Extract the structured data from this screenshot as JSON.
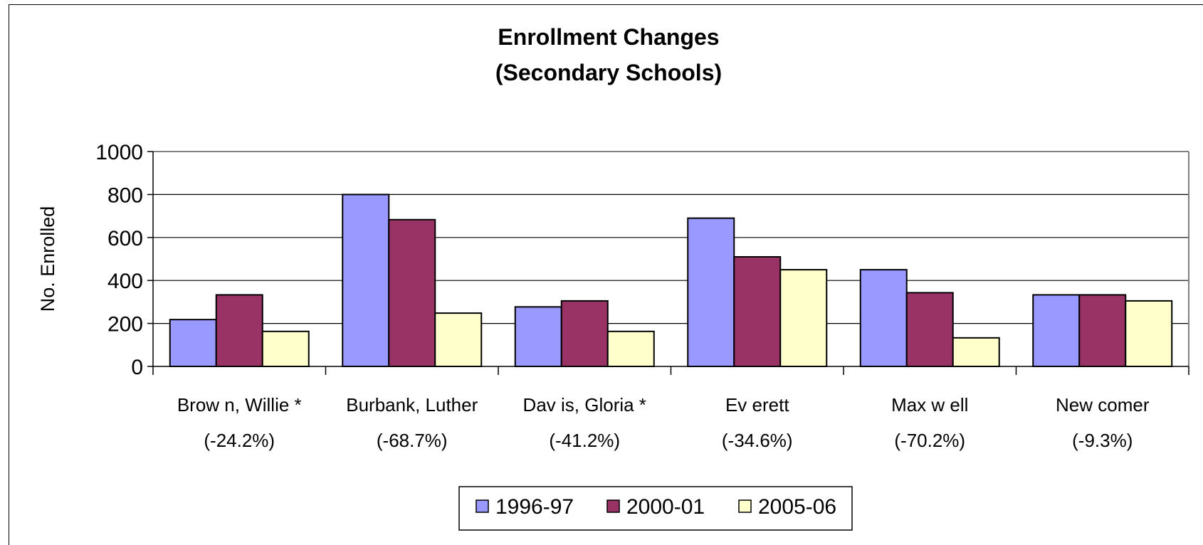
{
  "chart_data": {
    "type": "bar",
    "title": [
      "Enrollment Changes",
      "(Secondary Schools)"
    ],
    "ylabel": "No. Enrolled",
    "xlabel": "",
    "ylim": [
      0,
      1000
    ],
    "yticks": [
      0,
      200,
      400,
      600,
      800,
      1000
    ],
    "grid": true,
    "legend_position": "bottom",
    "categories": [
      [
        "Brow n, Willie *",
        "(-24.2%)"
      ],
      [
        "Burbank, Luther",
        "(-68.7%)"
      ],
      [
        "Dav is, Gloria *",
        "(-41.2%)"
      ],
      [
        "Ev erett",
        "(-34.6%)"
      ],
      [
        "Max w ell",
        "(-70.2%)"
      ],
      [
        "New comer",
        "(-9.3%)"
      ]
    ],
    "series": [
      {
        "name": "1996-97",
        "color": "#9999FF",
        "values": [
          218,
          800,
          277,
          690,
          450,
          333
        ]
      },
      {
        "name": "2000-01",
        "color": "#993366",
        "values": [
          333,
          683,
          305,
          510,
          343,
          333
        ]
      },
      {
        "name": "2005-06",
        "color": "#FFFFCC",
        "values": [
          163,
          248,
          163,
          450,
          133,
          305
        ]
      }
    ]
  }
}
